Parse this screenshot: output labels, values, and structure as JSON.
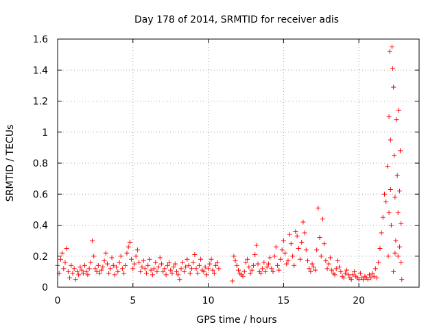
{
  "chart_data": {
    "type": "scatter",
    "title": "Day 178 of 2014, SRMTID for receiver adis",
    "xlabel": "GPS time / hours",
    "ylabel": "SRMTID / TECUs",
    "xlim": [
      0,
      24
    ],
    "ylim": [
      0,
      1.6
    ],
    "xticks": [
      0,
      5,
      10,
      15,
      20
    ],
    "xtick_labels": [
      "0",
      "5",
      "10",
      "15",
      "20"
    ],
    "yticks": [
      0,
      0.2,
      0.4,
      0.6,
      0.8,
      1.0,
      1.2,
      1.4,
      1.6
    ],
    "ytick_labels": [
      "0",
      "0.2",
      "0.4",
      "0.6",
      "0.8",
      "1",
      "1.2",
      "1.4",
      "1.6"
    ],
    "grid": true,
    "marker": "plus",
    "series": [
      {
        "name": "SRMTID",
        "color": "#ff0000",
        "points": [
          [
            0.0,
            0.14
          ],
          [
            0.1,
            0.09
          ],
          [
            0.2,
            0.18
          ],
          [
            0.3,
            0.22
          ],
          [
            0.4,
            0.12
          ],
          [
            0.5,
            0.16
          ],
          [
            0.6,
            0.25
          ],
          [
            0.7,
            0.1
          ],
          [
            0.8,
            0.06
          ],
          [
            0.9,
            0.14
          ],
          [
            1.0,
            0.09
          ],
          [
            1.1,
            0.12
          ],
          [
            1.2,
            0.05
          ],
          [
            1.3,
            0.1
          ],
          [
            1.4,
            0.08
          ],
          [
            1.5,
            0.13
          ],
          [
            1.6,
            0.11
          ],
          [
            1.7,
            0.09
          ],
          [
            1.8,
            0.14
          ],
          [
            1.9,
            0.1
          ],
          [
            2.0,
            0.08
          ],
          [
            2.1,
            0.12
          ],
          [
            2.2,
            0.16
          ],
          [
            2.3,
            0.3
          ],
          [
            2.4,
            0.2
          ],
          [
            2.5,
            0.12
          ],
          [
            2.6,
            0.1
          ],
          [
            2.7,
            0.14
          ],
          [
            2.8,
            0.09
          ],
          [
            2.9,
            0.11
          ],
          [
            3.0,
            0.13
          ],
          [
            3.1,
            0.17
          ],
          [
            3.2,
            0.22
          ],
          [
            3.3,
            0.15
          ],
          [
            3.4,
            0.09
          ],
          [
            3.5,
            0.12
          ],
          [
            3.6,
            0.19
          ],
          [
            3.7,
            0.14
          ],
          [
            3.8,
            0.08
          ],
          [
            3.9,
            0.13
          ],
          [
            4.0,
            0.1
          ],
          [
            4.1,
            0.16
          ],
          [
            4.2,
            0.2
          ],
          [
            4.3,
            0.12
          ],
          [
            4.4,
            0.09
          ],
          [
            4.5,
            0.14
          ],
          [
            4.6,
            0.22
          ],
          [
            4.7,
            0.26
          ],
          [
            4.8,
            0.29
          ],
          [
            4.9,
            0.18
          ],
          [
            5.0,
            0.12
          ],
          [
            5.1,
            0.15
          ],
          [
            5.2,
            0.2
          ],
          [
            5.3,
            0.24
          ],
          [
            5.4,
            0.16
          ],
          [
            5.5,
            0.1
          ],
          [
            5.6,
            0.13
          ],
          [
            5.7,
            0.17
          ],
          [
            5.8,
            0.12
          ],
          [
            5.9,
            0.09
          ],
          [
            6.0,
            0.14
          ],
          [
            6.1,
            0.18
          ],
          [
            6.2,
            0.11
          ],
          [
            6.3,
            0.08
          ],
          [
            6.4,
            0.12
          ],
          [
            6.5,
            0.16
          ],
          [
            6.6,
            0.1
          ],
          [
            6.7,
            0.13
          ],
          [
            6.8,
            0.19
          ],
          [
            6.9,
            0.15
          ],
          [
            7.0,
            0.1
          ],
          [
            7.1,
            0.12
          ],
          [
            7.2,
            0.08
          ],
          [
            7.3,
            0.14
          ],
          [
            7.4,
            0.16
          ],
          [
            7.5,
            0.11
          ],
          [
            7.6,
            0.09
          ],
          [
            7.7,
            0.13
          ],
          [
            7.8,
            0.15
          ],
          [
            7.9,
            0.1
          ],
          [
            8.0,
            0.08
          ],
          [
            8.1,
            0.05
          ],
          [
            8.2,
            0.12
          ],
          [
            8.3,
            0.16
          ],
          [
            8.4,
            0.1
          ],
          [
            8.5,
            0.13
          ],
          [
            8.6,
            0.18
          ],
          [
            8.7,
            0.14
          ],
          [
            8.8,
            0.09
          ],
          [
            8.9,
            0.12
          ],
          [
            9.0,
            0.16
          ],
          [
            9.1,
            0.21
          ],
          [
            9.2,
            0.12
          ],
          [
            9.3,
            0.09
          ],
          [
            9.4,
            0.14
          ],
          [
            9.5,
            0.18
          ],
          [
            9.6,
            0.11
          ],
          [
            9.7,
            0.1
          ],
          [
            9.8,
            0.13
          ],
          [
            9.9,
            0.08
          ],
          [
            10.0,
            0.12
          ],
          [
            10.1,
            0.15
          ],
          [
            10.2,
            0.18
          ],
          [
            10.3,
            0.11
          ],
          [
            10.4,
            0.09
          ],
          [
            10.5,
            0.14
          ],
          [
            10.6,
            0.16
          ],
          [
            10.7,
            0.12
          ],
          [
            11.6,
            0.04
          ],
          [
            11.7,
            0.2
          ],
          [
            11.8,
            0.17
          ],
          [
            11.9,
            0.14
          ],
          [
            12.0,
            0.11
          ],
          [
            12.1,
            0.09
          ],
          [
            12.2,
            0.08
          ],
          [
            12.3,
            0.07
          ],
          [
            12.4,
            0.1
          ],
          [
            12.5,
            0.16
          ],
          [
            12.6,
            0.18
          ],
          [
            12.7,
            0.13
          ],
          [
            12.8,
            0.09
          ],
          [
            12.9,
            0.11
          ],
          [
            13.0,
            0.14
          ],
          [
            13.1,
            0.21
          ],
          [
            13.2,
            0.27
          ],
          [
            13.3,
            0.15
          ],
          [
            13.4,
            0.1
          ],
          [
            13.5,
            0.09
          ],
          [
            13.6,
            0.12
          ],
          [
            13.7,
            0.16
          ],
          [
            13.8,
            0.1
          ],
          [
            13.9,
            0.13
          ],
          [
            14.0,
            0.15
          ],
          [
            14.1,
            0.19
          ],
          [
            14.2,
            0.12
          ],
          [
            14.3,
            0.1
          ],
          [
            14.4,
            0.2
          ],
          [
            14.5,
            0.26
          ],
          [
            14.6,
            0.14
          ],
          [
            14.7,
            0.11
          ],
          [
            14.8,
            0.18
          ],
          [
            14.9,
            0.24
          ],
          [
            15.0,
            0.3
          ],
          [
            15.1,
            0.22
          ],
          [
            15.2,
            0.15
          ],
          [
            15.3,
            0.17
          ],
          [
            15.4,
            0.34
          ],
          [
            15.5,
            0.28
          ],
          [
            15.6,
            0.2
          ],
          [
            15.7,
            0.14
          ],
          [
            15.8,
            0.36
          ],
          [
            15.9,
            0.33
          ],
          [
            16.0,
            0.25
          ],
          [
            16.1,
            0.18
          ],
          [
            16.2,
            0.29
          ],
          [
            16.3,
            0.42
          ],
          [
            16.4,
            0.35
          ],
          [
            16.5,
            0.24
          ],
          [
            16.6,
            0.17
          ],
          [
            16.7,
            0.12
          ],
          [
            16.8,
            0.1
          ],
          [
            16.9,
            0.15
          ],
          [
            17.0,
            0.13
          ],
          [
            17.1,
            0.11
          ],
          [
            17.2,
            0.24
          ],
          [
            17.3,
            0.51
          ],
          [
            17.4,
            0.32
          ],
          [
            17.5,
            0.2
          ],
          [
            17.6,
            0.44
          ],
          [
            17.7,
            0.28
          ],
          [
            17.8,
            0.17
          ],
          [
            17.9,
            0.12
          ],
          [
            18.0,
            0.15
          ],
          [
            18.1,
            0.19
          ],
          [
            18.2,
            0.11
          ],
          [
            18.3,
            0.09
          ],
          [
            18.4,
            0.08
          ],
          [
            18.5,
            0.12
          ],
          [
            18.6,
            0.17
          ],
          [
            18.7,
            0.13
          ],
          [
            18.8,
            0.1
          ],
          [
            18.9,
            0.07
          ],
          [
            19.0,
            0.06
          ],
          [
            19.1,
            0.09
          ],
          [
            19.2,
            0.11
          ],
          [
            19.3,
            0.08
          ],
          [
            19.4,
            0.06
          ],
          [
            19.5,
            0.05
          ],
          [
            19.6,
            0.08
          ],
          [
            19.7,
            0.1
          ],
          [
            19.8,
            0.07
          ],
          [
            19.9,
            0.06
          ],
          [
            20.0,
            0.05
          ],
          [
            20.1,
            0.09
          ],
          [
            20.2,
            0.06
          ],
          [
            20.3,
            0.05
          ],
          [
            20.4,
            0.07
          ],
          [
            20.5,
            0.06
          ],
          [
            20.6,
            0.05
          ],
          [
            20.7,
            0.08
          ],
          [
            20.8,
            0.06
          ],
          [
            20.9,
            0.09
          ],
          [
            21.0,
            0.07
          ],
          [
            21.1,
            0.12
          ],
          [
            21.2,
            0.06
          ],
          [
            21.3,
            0.16
          ],
          [
            21.4,
            0.25
          ],
          [
            21.5,
            0.35
          ],
          [
            21.6,
            0.45
          ],
          [
            21.7,
            0.6
          ],
          [
            21.8,
            0.55
          ],
          [
            21.9,
            0.78
          ],
          [
            22.0,
            1.1
          ],
          [
            22.05,
            1.52
          ],
          [
            22.1,
            0.95
          ],
          [
            22.15,
            0.4
          ],
          [
            22.2,
            1.55
          ],
          [
            22.25,
            1.41
          ],
          [
            22.3,
            1.29
          ],
          [
            22.35,
            0.85
          ],
          [
            22.4,
            0.58
          ],
          [
            22.45,
            0.3
          ],
          [
            22.5,
            1.08
          ],
          [
            22.55,
            0.72
          ],
          [
            22.6,
            0.48
          ],
          [
            22.65,
            1.14
          ],
          [
            22.7,
            0.26
          ],
          [
            22.75,
            0.88
          ],
          [
            22.8,
            0.41
          ],
          [
            22.85,
            0.05
          ],
          [
            21.95,
            0.2
          ],
          [
            22.0,
            0.48
          ],
          [
            22.1,
            0.63
          ],
          [
            22.3,
            0.1
          ],
          [
            22.4,
            0.22
          ],
          [
            22.6,
            0.2
          ],
          [
            22.7,
            0.62
          ],
          [
            22.8,
            0.16
          ]
        ]
      }
    ]
  }
}
